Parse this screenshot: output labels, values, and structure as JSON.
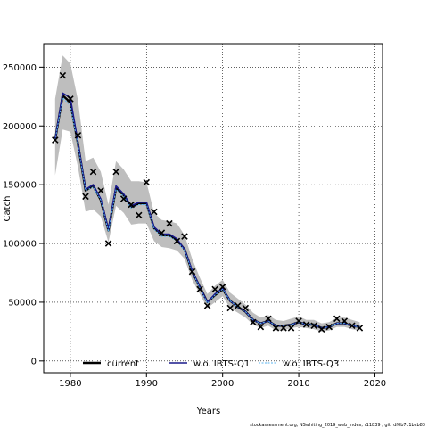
{
  "chart_data": {
    "type": "line",
    "xlabel": "Years",
    "ylabel": "Catch",
    "xlim": [
      1976.5,
      2021
    ],
    "ylim": [
      -10000,
      270000
    ],
    "x_ticks": [
      1980,
      1990,
      2000,
      2010,
      2020
    ],
    "y_ticks": [
      0,
      50000,
      100000,
      150000,
      200000,
      250000
    ],
    "grid": "dotted",
    "legend_position": "bottom",
    "x": [
      1978,
      1979,
      1980,
      1981,
      1982,
      1983,
      1984,
      1985,
      1986,
      1987,
      1988,
      1989,
      1990,
      1991,
      1992,
      1993,
      1994,
      1995,
      1996,
      1997,
      1998,
      1999,
      2000,
      2001,
      2002,
      2003,
      2004,
      2005,
      2006,
      2007,
      2008,
      2009,
      2010,
      2011,
      2012,
      2013,
      2014,
      2015,
      2016,
      2017,
      2018
    ],
    "observed": [
      188000,
      243000,
      223000,
      192000,
      140000,
      161000,
      145000,
      100000,
      161000,
      138000,
      133000,
      124000,
      152000,
      127000,
      109000,
      117000,
      102000,
      106000,
      76000,
      61000,
      47000,
      61000,
      63000,
      45000,
      47000,
      45000,
      33000,
      29000,
      36000,
      28000,
      28000,
      28000,
      34000,
      31000,
      30000,
      27000,
      29000,
      36000,
      34000,
      30000,
      28000
    ],
    "series": [
      {
        "name": "current",
        "values": [
          188000,
          226000,
          220000,
          185000,
          145000,
          149000,
          137000,
          111000,
          147000,
          141000,
          131000,
          134000,
          134000,
          113000,
          107000,
          107000,
          103000,
          95000,
          76000,
          63000,
          50000,
          56000,
          61000,
          51000,
          46000,
          42000,
          35000,
          32000,
          34000,
          30000,
          30000,
          31000,
          33000,
          31000,
          31000,
          28000,
          29000,
          32000,
          32000,
          30000,
          29000
        ],
        "lower": [
          158000,
          197000,
          195000,
          165000,
          127000,
          129000,
          123000,
          101000,
          132000,
          126000,
          116000,
          117000,
          117000,
          102000,
          97000,
          96000,
          94000,
          87000,
          69000,
          57000,
          45000,
          50000,
          55000,
          45000,
          41000,
          37000,
          31000,
          28000,
          30000,
          26000,
          26000,
          28000,
          29000,
          28000,
          27000,
          25000,
          26000,
          29000,
          29000,
          27000,
          26000
        ],
        "upper": [
          223000,
          260000,
          253000,
          222000,
          170000,
          173000,
          161000,
          133000,
          170000,
          163000,
          153000,
          153000,
          152000,
          126000,
          120000,
          119000,
          117000,
          107000,
          87000,
          71000,
          57000,
          64000,
          69000,
          58000,
          53000,
          48000,
          41000,
          37000,
          39000,
          35000,
          34000,
          36000,
          38000,
          35000,
          35000,
          32000,
          33000,
          37000,
          37000,
          35000,
          33000
        ]
      },
      {
        "name": "w.o. IBTS-Q1",
        "values": [
          188000,
          228000,
          224000,
          186000,
          146000,
          150000,
          138000,
          112000,
          149000,
          142000,
          132000,
          135000,
          135000,
          114000,
          108000,
          108000,
          104000,
          95000,
          77000,
          63000,
          50000,
          57000,
          62000,
          51000,
          46000,
          42000,
          35000,
          32000,
          34000,
          30000,
          30000,
          31000,
          33000,
          31000,
          31000,
          28000,
          29000,
          32000,
          32000,
          30000,
          29000
        ]
      },
      {
        "name": "w.o. IBTS-Q3",
        "values": [
          188000,
          224000,
          217000,
          184000,
          145000,
          148000,
          137000,
          110000,
          146000,
          140000,
          130000,
          133000,
          133000,
          112000,
          106000,
          106000,
          102000,
          94000,
          76000,
          62000,
          49000,
          56000,
          61000,
          51000,
          46000,
          42000,
          35000,
          32000,
          34000,
          30000,
          30000,
          31000,
          33000,
          31000,
          31000,
          28000,
          29000,
          32000,
          32000,
          30000,
          29000
        ]
      }
    ],
    "colors": {
      "ci_band": "#bebebe",
      "current": "#000000",
      "w.o. IBTS-Q1": "#1a1a8c",
      "w.o. IBTS-Q3": "#5bb6f0",
      "observed": "#000000"
    }
  },
  "footer": "stockassessment.org, NSwhiting_2019_web_index, r11839 , git: df0b7c1bcb83"
}
